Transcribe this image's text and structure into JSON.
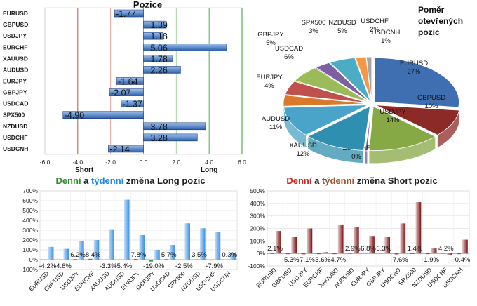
{
  "chart_data": [
    {
      "type": "bar",
      "orientation": "horizontal",
      "title": "Pozice",
      "categories": [
        "EURUSD",
        "GBPUSD",
        "USDJPY",
        "EURCHF",
        "XAUUSD",
        "AUDUSD",
        "EURJPY",
        "GBPJPY",
        "USDCAD",
        "SPX500",
        "NZDUSD",
        "USDCHF",
        "USDCNH"
      ],
      "values": [
        -1.77,
        1.39,
        1.18,
        5.06,
        1.78,
        2.26,
        -1.64,
        -2.07,
        -1.37,
        -4.9,
        3.78,
        3.28,
        -2.14
      ],
      "value_labels": [
        "-1.77",
        "1.39",
        "1.18",
        "5.06",
        "1.78",
        "2.26",
        "-1.64",
        "-2.07",
        "-1.37",
        "-4.90",
        "3.78",
        "3.28",
        "-2.14"
      ],
      "xlim": [
        -6.0,
        6.0
      ],
      "xticks": [
        "-6.0",
        "-4.0",
        "-2.0",
        "0.0",
        "2.0",
        "4.0",
        "6.0"
      ],
      "side_labels": {
        "short": "Short",
        "long": "Long"
      },
      "ref_lines": [
        -4,
        -2,
        2,
        4
      ],
      "colors": {
        "bar": "#5b8fd6",
        "bar_dark": "#1f3f7a",
        "line_red": "#c0504d",
        "line_pink": "#e6a0a0",
        "line_green": "#4caf50",
        "line_lightgreen": "#a8d5a0"
      }
    },
    {
      "type": "pie",
      "title_lines": [
        "Poměr",
        "otevřených",
        "pozic"
      ],
      "slices": [
        {
          "name": "EURUSD",
          "label": "27%",
          "value": 27,
          "color": "#3f6fb0"
        },
        {
          "name": "GBPUSD",
          "label": "10%",
          "value": 10,
          "color": "#8b2a27"
        },
        {
          "name": "USDJPY",
          "label": "14%",
          "value": 14,
          "color": "#86a845"
        },
        {
          "name": "EURCHF",
          "label": "0%",
          "value": 0.4,
          "color": "#6b5b95"
        },
        {
          "name": "XAUUSD",
          "label": "12%",
          "value": 12,
          "color": "#2f8fb0"
        },
        {
          "name": "AUDUSD",
          "label": "11%",
          "value": 11,
          "color": "#4aa3c8"
        },
        {
          "name": "EURJPY",
          "label": "4%",
          "value": 4,
          "color": "#d9792b"
        },
        {
          "name": "GBPJPY",
          "label": "5%",
          "value": 5,
          "color": "#c0504d"
        },
        {
          "name": "USDCAD",
          "label": "6%",
          "value": 6,
          "color": "#9bbb59"
        },
        {
          "name": "SPX500",
          "label": "3%",
          "value": 3,
          "color": "#7d60a0"
        },
        {
          "name": "NZDUSD",
          "label": "5%",
          "value": 5,
          "color": "#4bacc6"
        },
        {
          "name": "USDCHF",
          "label": "2%",
          "value": 2,
          "color": "#f79646"
        },
        {
          "name": "USDCNH",
          "label": "1%",
          "value": 1,
          "color": "#a5a5a5"
        }
      ]
    },
    {
      "type": "bar",
      "title_parts": [
        {
          "text": "Denní",
          "color": "#2e8b2e"
        },
        {
          "text": " a ",
          "color": "#222222"
        },
        {
          "text": "týdenní",
          "color": "#1e88e5"
        },
        {
          "text": " změna Long pozic",
          "color": "#222222"
        }
      ],
      "categories": [
        "EURUSD",
        "GBPUSD",
        "USDJPY",
        "EURCHF",
        "XAUUSD",
        "AUDUSD",
        "EURJPY",
        "GBPJPY",
        "USDCAD",
        "SPX500",
        "NZDUSD",
        "USDCHF",
        "USDCNH"
      ],
      "series": [
        {
          "role": "daily",
          "values": [
            -4.2,
            -4.8,
            6.2,
            8.4,
            -3.3,
            -5.4,
            7.8,
            -19.0,
            5.7,
            -2.5,
            3.5,
            -7.9,
            0.3
          ],
          "labels": [
            "-4.2%",
            "-4.8%",
            "6.2%",
            "8.4%",
            "-3.3%",
            "-5.4%",
            "7.8%",
            "-19.0%",
            "5.7%",
            "-2.5%",
            "3.5%",
            "-7.9%",
            "0.3%"
          ],
          "color": "#3c9a3c"
        },
        {
          "role": "weekly",
          "values": [
            130,
            110,
            190,
            200,
            310,
            610,
            250,
            100,
            150,
            370,
            320,
            280,
            70
          ],
          "color": "#4ea1ef"
        }
      ],
      "ylim": [
        -100,
        700
      ],
      "yticks": [
        "-100%",
        "0%",
        "100%",
        "200%",
        "300%",
        "400%",
        "500%",
        "600%",
        "700%"
      ]
    },
    {
      "type": "bar",
      "title_parts": [
        {
          "text": "Denní",
          "color": "#c62828"
        },
        {
          "text": " a ",
          "color": "#222222"
        },
        {
          "text": "týdenní",
          "color": "#a0522d"
        },
        {
          "text": " změna Short pozic",
          "color": "#222222"
        }
      ],
      "categories": [
        "EURUSD",
        "GBPUSD",
        "USDJPY",
        "EURCHF",
        "XAUUSD",
        "AUDUSD",
        "EURJPY",
        "GBPJPY",
        "USDCAD",
        "SPX500",
        "NZDUSD",
        "USDCHF",
        "USDCNH"
      ],
      "series": [
        {
          "role": "daily",
          "values": [
            2.1,
            -5.3,
            -7.1,
            -3.6,
            -4.7,
            2.9,
            6.8,
            6.3,
            -7.6,
            1.4,
            -1.9,
            4.2,
            -0.4
          ],
          "labels": [
            "2.1%",
            "-5.3%",
            "-7.1%",
            "-3.6%",
            "-4.7%",
            "2.9%",
            "6.8%",
            "6.3%",
            "-7.6%",
            "1.4%",
            "-1.9%",
            "4.2%",
            "-0.4%"
          ],
          "color": "#b33a3a"
        },
        {
          "role": "weekly",
          "values": [
            180,
            130,
            200,
            10,
            230,
            210,
            140,
            130,
            240,
            410,
            40,
            -10,
            110
          ],
          "color": "#7a1414"
        }
      ],
      "ylim": [
        -100,
        500
      ],
      "yticks": [
        "-100%",
        "0%",
        "100%",
        "200%",
        "300%",
        "400%",
        "500%"
      ]
    }
  ]
}
